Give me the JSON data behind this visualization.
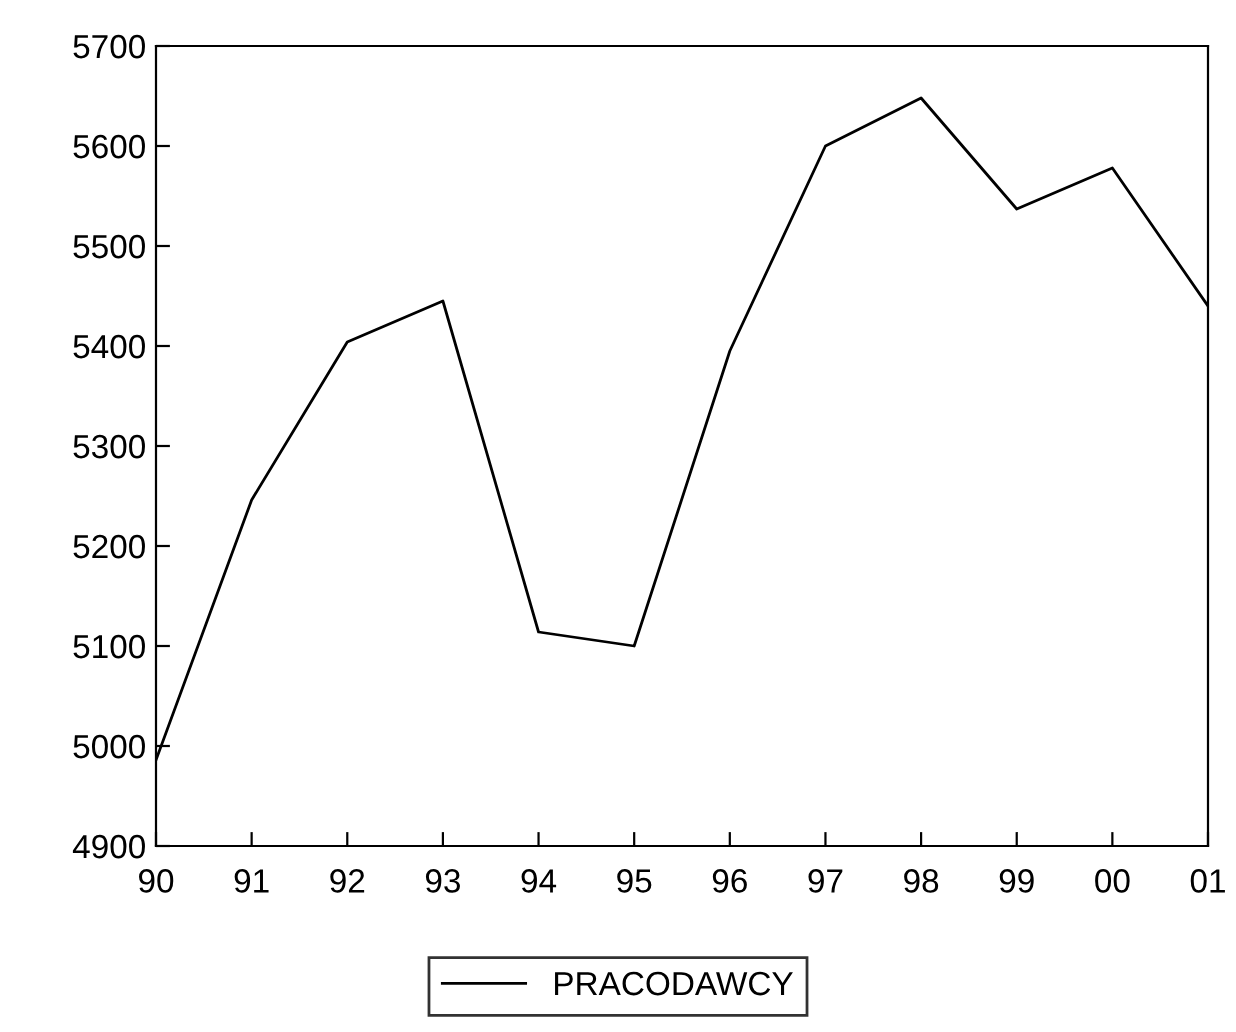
{
  "chart_data": {
    "type": "line",
    "categories": [
      "90",
      "91",
      "92",
      "93",
      "94",
      "95",
      "96",
      "97",
      "98",
      "99",
      "00",
      "01"
    ],
    "series": [
      {
        "name": "PRACODAWCY",
        "color": "#000000",
        "values": [
          4986,
          5246,
          5404,
          5445,
          5114,
          5100,
          5395,
          5600,
          5648,
          5537,
          5578,
          5440
        ]
      }
    ],
    "ylim": [
      4900,
      5700
    ],
    "yticks": [
      4900,
      5000,
      5100,
      5200,
      5300,
      5400,
      5500,
      5600,
      5700
    ],
    "grid": false,
    "legend": "bottom",
    "marker": "none",
    "line_style": "solid"
  }
}
